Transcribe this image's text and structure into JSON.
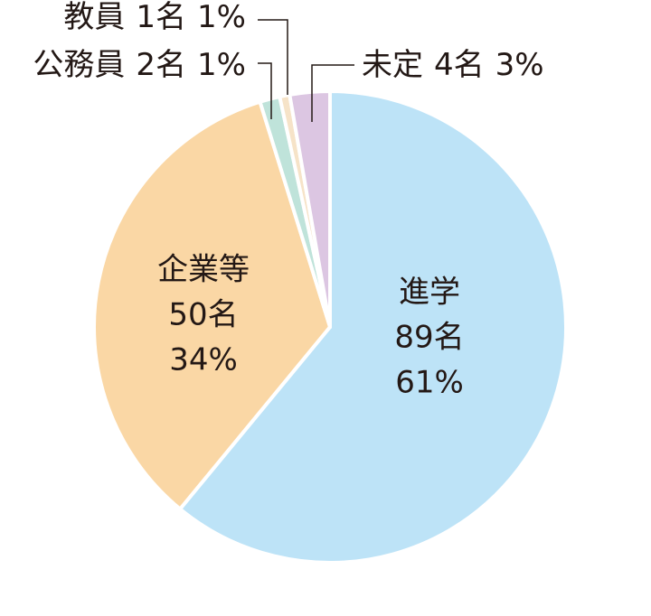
{
  "chart_data": {
    "type": "pie",
    "categories": [
      "進学",
      "企業等",
      "公務員",
      "教員",
      "未定"
    ],
    "values": [
      89,
      50,
      2,
      1,
      4
    ],
    "value_labels": [
      "89名",
      "50名",
      "2名",
      "1名",
      "4名"
    ],
    "percents": [
      61,
      34,
      1,
      1,
      3
    ],
    "percent_labels": [
      "61%",
      "34%",
      "1%",
      "1%",
      "3%"
    ],
    "colors": [
      "#bde3f7",
      "#fad7a5",
      "#bfe3da",
      "#f6e3c8",
      "#dcc6e2"
    ]
  }
}
